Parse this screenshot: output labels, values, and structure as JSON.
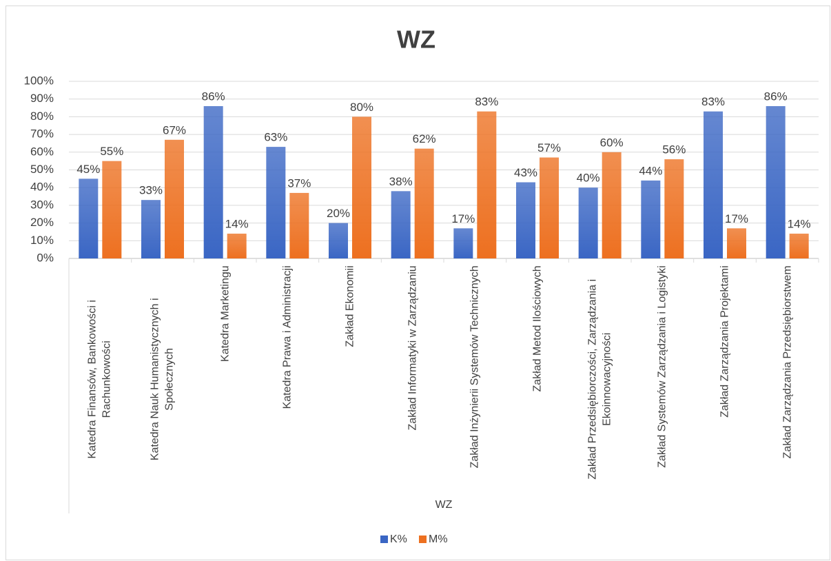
{
  "chart_data": {
    "type": "bar",
    "title": "WZ",
    "x_label": "WZ",
    "categories": [
      "Katedra Finansów, Bankowości i Rachunkowości",
      "Katedra Nauk Humanistycznych i Społecznych",
      "Katedra Marketingu",
      "Katedra Prawa i Administracji",
      "Zakład Ekonomii",
      "Zakład Informatyki w Zarządzaniu",
      "Zakład Inżynierii Systemów Technicznych",
      "Zakład Metod Ilościowych",
      "Zakład Przedsiębiorczości, Zarządzania i Ekoinnowacyjności",
      "Zakład Systemów Zarządzania i Logistyki",
      "Zakład Zarządzania Projektami",
      "Zakład Zarządzania Przedsiębiorstwem"
    ],
    "series": [
      {
        "name": "K%",
        "color": "#3a66c4",
        "values": [
          45,
          33,
          86,
          63,
          20,
          38,
          17,
          43,
          40,
          44,
          83,
          86
        ],
        "value_labels": [
          "45%",
          "33%",
          "86%",
          "63%",
          "20%",
          "38%",
          "17%",
          "43%",
          "40%",
          "44%",
          "83%",
          "86%"
        ]
      },
      {
        "name": "M%",
        "color": "#ed7020",
        "values": [
          55,
          67,
          14,
          37,
          80,
          62,
          83,
          57,
          60,
          56,
          17,
          14
        ],
        "value_labels": [
          "55%",
          "67%",
          "14%",
          "37%",
          "80%",
          "62%",
          "83%",
          "57%",
          "60%",
          "56%",
          "17%",
          "14%"
        ]
      }
    ],
    "ylim": [
      0,
      100
    ],
    "yticks": [
      {
        "value": 0,
        "label": "0%"
      },
      {
        "value": 10,
        "label": "10%"
      },
      {
        "value": 20,
        "label": "20%"
      },
      {
        "value": 30,
        "label": "30%"
      },
      {
        "value": 40,
        "label": "40%"
      },
      {
        "value": 50,
        "label": "50%"
      },
      {
        "value": 60,
        "label": "60%"
      },
      {
        "value": 70,
        "label": "70%"
      },
      {
        "value": 80,
        "label": "80%"
      },
      {
        "value": 90,
        "label": "90%"
      },
      {
        "value": 100,
        "label": "100%"
      }
    ],
    "grid": true,
    "legend": "bottom"
  }
}
